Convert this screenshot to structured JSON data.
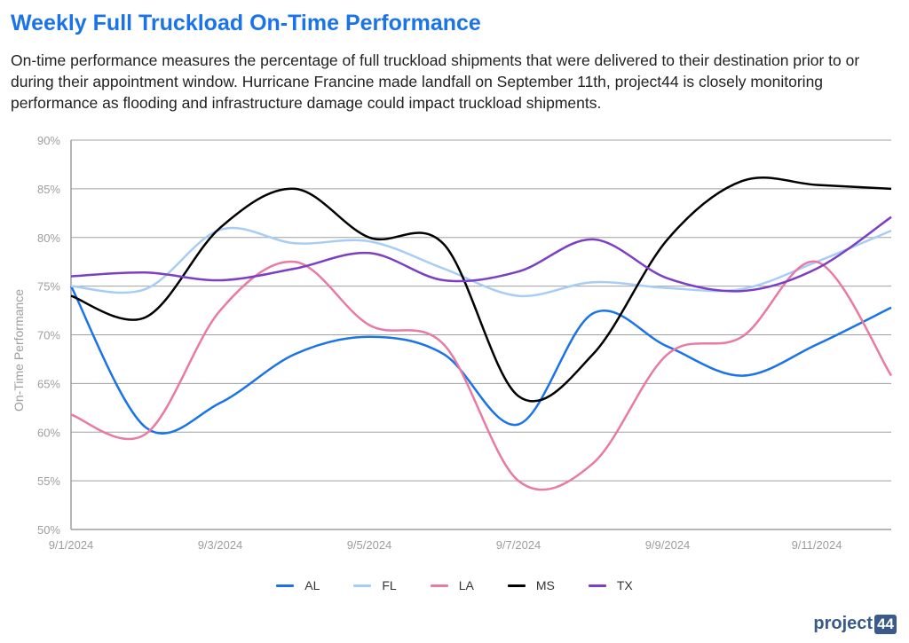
{
  "header": {
    "title": "Weekly Full Truckload On-Time Performance",
    "description": "On-time performance measures the percentage of full truckload shipments that were delivered to their destination prior to or during their appointment window. Hurricane Francine made landfall on September 11th, project44 is closely monitoring performance as flooding and infrastructure damage could impact truckload shipments."
  },
  "logo": {
    "text": "project",
    "badge": "44"
  },
  "chart_data": {
    "type": "line",
    "title": "Weekly Full Truckload On-Time Performance",
    "ylabel": "On-Time Performance",
    "xlabel": "",
    "ylim": [
      50,
      90
    ],
    "y_ticks": [
      50,
      55,
      60,
      65,
      70,
      75,
      80,
      85,
      90
    ],
    "y_tick_labels": [
      "50%",
      "55%",
      "60%",
      "65%",
      "70%",
      "75%",
      "80%",
      "85%",
      "90%"
    ],
    "x": [
      "9/1/2024",
      "9/2/2024",
      "9/3/2024",
      "9/4/2024",
      "9/5/2024",
      "9/6/2024",
      "9/7/2024",
      "9/8/2024",
      "9/9/2024",
      "9/10/2024",
      "9/11/2024",
      "9/12/2024"
    ],
    "x_tick_labels": [
      "9/1/2024",
      "9/3/2024",
      "9/5/2024",
      "9/7/2024",
      "9/9/2024",
      "9/11/2024"
    ],
    "grid": true,
    "legend_position": "bottom",
    "series": [
      {
        "name": "AL",
        "color": "#1a73e8",
        "values": [
          75.0,
          60.5,
          63.0,
          68.0,
          69.8,
          68.0,
          60.8,
          72.2,
          68.8,
          65.8,
          69.0,
          72.8
        ]
      },
      {
        "name": "FL",
        "color": "#a8cdf5",
        "values": [
          75.0,
          74.7,
          80.8,
          79.4,
          79.6,
          76.8,
          74.0,
          75.4,
          74.8,
          74.7,
          77.5,
          80.7
        ]
      },
      {
        "name": "LA",
        "color": "#e87aa4",
        "values": [
          61.8,
          59.8,
          72.5,
          77.5,
          71.0,
          69.0,
          55.0,
          56.8,
          68.0,
          69.8,
          77.5,
          65.8
        ]
      },
      {
        "name": "MS",
        "color": "#000000",
        "values": [
          74.0,
          71.8,
          81.0,
          85.0,
          80.0,
          79.3,
          63.7,
          68.0,
          79.8,
          85.8,
          85.4,
          85.0
        ]
      },
      {
        "name": "TX",
        "color": "#7b3fc4",
        "values": [
          76.0,
          76.4,
          75.6,
          76.8,
          78.4,
          75.6,
          76.5,
          79.8,
          75.8,
          74.5,
          76.8,
          82.1
        ]
      }
    ]
  }
}
